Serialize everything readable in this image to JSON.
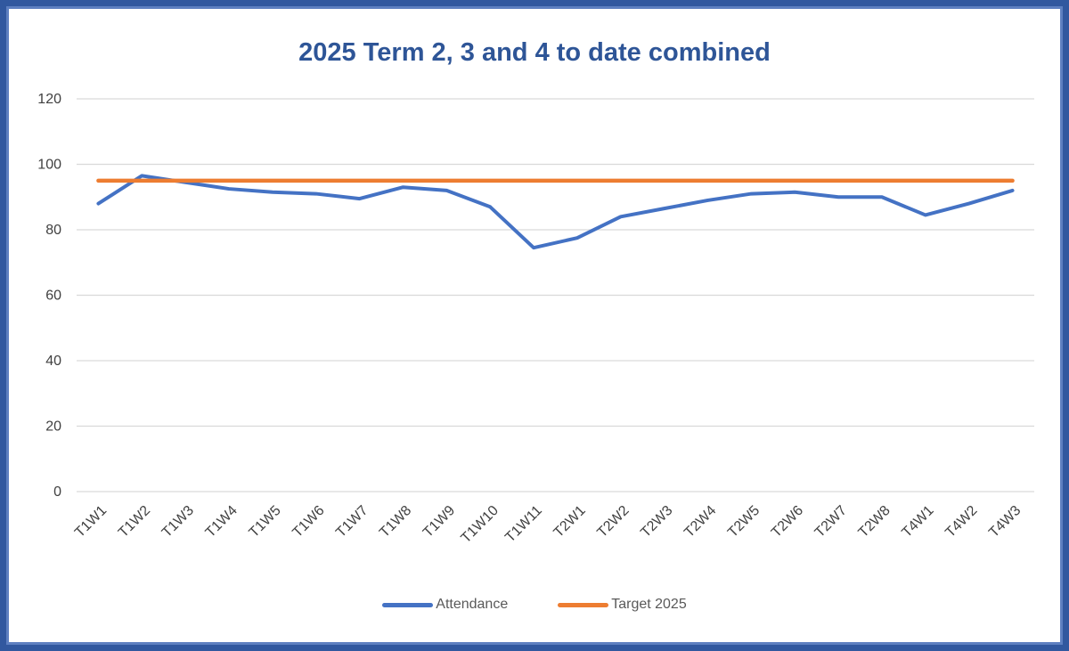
{
  "frame": {
    "border_color": "#31589F",
    "inner_border_color": "#5E80C1",
    "background": "#FFFFFF"
  },
  "chart_data": {
    "type": "line",
    "title": "2025 Term 2, 3 and 4 to date combined",
    "title_color": "#2E5597",
    "categories": [
      "T1W1",
      "T1W2",
      "T1W3",
      "T1W4",
      "T1W5",
      "T1W6",
      "T1W7",
      "T1W8",
      "T1W9",
      "T1W10",
      "T1W11",
      "T2W1",
      "T2W2",
      "T2W3",
      "T2W4",
      "T2W5",
      "T2W6",
      "T2W7",
      "T2W8",
      "T4W1",
      "T4W2",
      "T4W3"
    ],
    "series": [
      {
        "name": "Attendance",
        "color": "#4472C4",
        "stroke_width": 4,
        "values": [
          88,
          96.5,
          94.5,
          92.5,
          91.5,
          91,
          89.5,
          93,
          92,
          87,
          74.5,
          77.5,
          84,
          86.5,
          89,
          91,
          91.5,
          90,
          90,
          84.5,
          88,
          92
        ]
      },
      {
        "name": "Target 2025",
        "color": "#ED7D31",
        "stroke_width": 4.5,
        "values": [
          95,
          95,
          95,
          95,
          95,
          95,
          95,
          95,
          95,
          95,
          95,
          95,
          95,
          95,
          95,
          95,
          95,
          95,
          95,
          95,
          95,
          95
        ]
      }
    ],
    "ylim": [
      0,
      120
    ],
    "yticks": [
      0,
      20,
      40,
      60,
      80,
      100,
      120
    ],
    "xlabel": "",
    "ylabel": "",
    "grid": "horizontal",
    "gridline_color": "#D9D9D9",
    "tick_label_color": "#404040",
    "tick_font_size": 15,
    "x_label_rotation": -45,
    "legend_position": "bottom",
    "legend_text_color": "#595959"
  }
}
